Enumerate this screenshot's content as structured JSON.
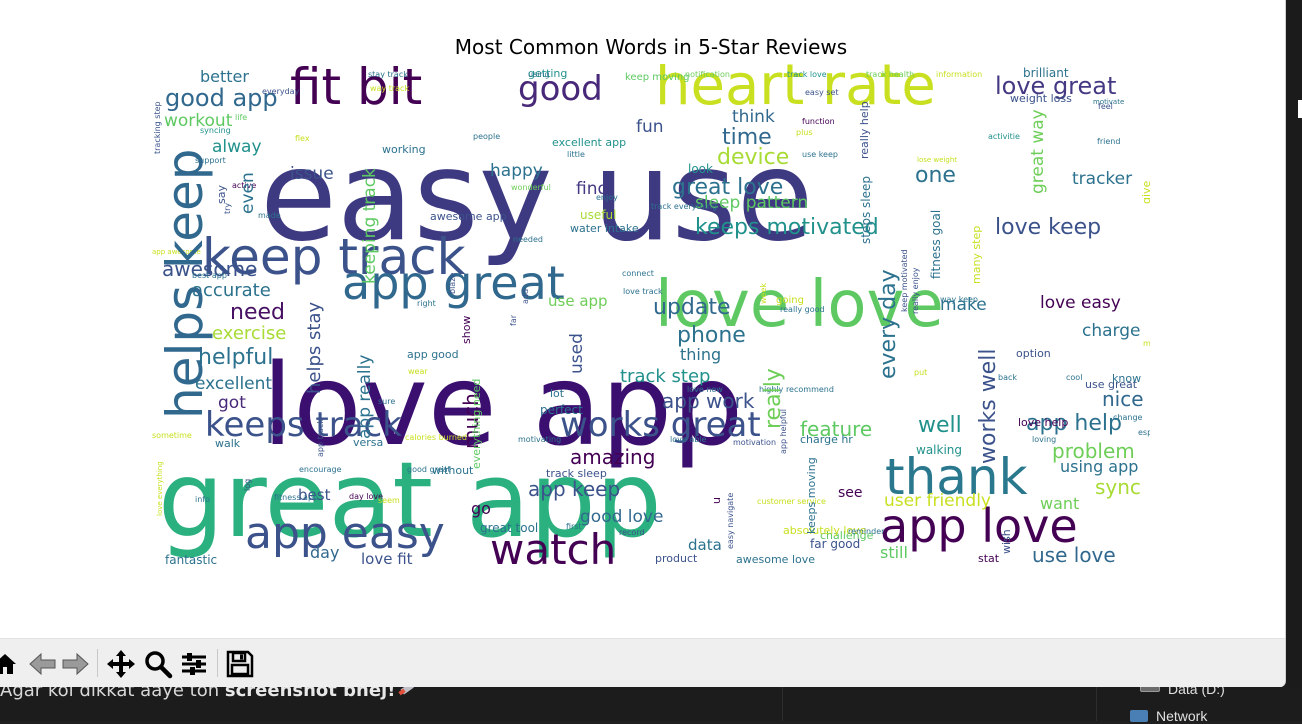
{
  "figure": {
    "title": "Most Common Words in 5-Star Reviews",
    "word_colors": [
      "#440154",
      "#482878",
      "#3e4989",
      "#31688e",
      "#26828e",
      "#1f9e89",
      "#35b779",
      "#6ece58",
      "#b5de2b",
      "#fde725"
    ],
    "words": [
      {
        "text": "easy use",
        "size": 125,
        "color": "#3e3a81"
      },
      {
        "text": "love app",
        "size": 112,
        "color": "#3b0f6f"
      },
      {
        "text": "great app",
        "size": 104,
        "color": "#2bb07f"
      },
      {
        "text": "love love",
        "size": 64,
        "color": "#5ec962"
      },
      {
        "text": "heart rate",
        "size": 56,
        "color": "#c8e020"
      },
      {
        "text": "keep track",
        "size": 50,
        "color": "#3b528b"
      },
      {
        "text": "fit bit",
        "size": 50,
        "color": "#440154"
      },
      {
        "text": "helps keep",
        "size": 50,
        "color": "#31688e"
      },
      {
        "text": "app great",
        "size": 46,
        "color": "#31688e"
      },
      {
        "text": "thank",
        "size": 50,
        "color": "#2a788e"
      },
      {
        "text": "app love",
        "size": 46,
        "color": "#440154"
      },
      {
        "text": "app easy",
        "size": 44,
        "color": "#3b528b"
      },
      {
        "text": "watch",
        "size": 42,
        "color": "#440154"
      },
      {
        "text": "keeps track",
        "size": 34,
        "color": "#3b528b"
      },
      {
        "text": "works great",
        "size": 34,
        "color": "#3b528b"
      },
      {
        "text": "good",
        "size": 34,
        "color": "#482878"
      },
      {
        "text": "love great",
        "size": 24,
        "color": "#443983"
      },
      {
        "text": "good app",
        "size": 24,
        "color": "#31688e"
      },
      {
        "text": "keeps motivated",
        "size": 22,
        "color": "#21918c"
      },
      {
        "text": "great love",
        "size": 22,
        "color": "#2c728e"
      },
      {
        "text": "love keep",
        "size": 22,
        "color": "#3b528b"
      },
      {
        "text": "device",
        "size": 22,
        "color": "#a8db34"
      },
      {
        "text": "time",
        "size": 22,
        "color": "#31688e"
      },
      {
        "text": "update",
        "size": 22,
        "color": "#31688e"
      },
      {
        "text": "phone",
        "size": 22,
        "color": "#2c728e"
      },
      {
        "text": "need",
        "size": 22,
        "color": "#471063"
      },
      {
        "text": "helpful",
        "size": 22,
        "color": "#2c728e"
      },
      {
        "text": "awesome",
        "size": 20,
        "color": "#3b528b"
      },
      {
        "text": "accurate",
        "size": 18,
        "color": "#2c728e"
      },
      {
        "text": "exercise",
        "size": 18,
        "color": "#a8db34"
      },
      {
        "text": "excellent",
        "size": 17,
        "color": "#2c728e"
      },
      {
        "text": "got",
        "size": 17,
        "color": "#482878"
      },
      {
        "text": "amazing",
        "size": 20,
        "color": "#440154"
      },
      {
        "text": "app keep",
        "size": 20,
        "color": "#3b528b"
      },
      {
        "text": "good love",
        "size": 17,
        "color": "#31688e"
      },
      {
        "text": "app work",
        "size": 20,
        "color": "#3b528b"
      },
      {
        "text": "track step",
        "size": 18,
        "color": "#21918c"
      },
      {
        "text": "feature",
        "size": 20,
        "color": "#5ec962"
      },
      {
        "text": "well",
        "size": 22,
        "color": "#21918c"
      },
      {
        "text": "app help",
        "size": 22,
        "color": "#2c728e"
      },
      {
        "text": "problem",
        "size": 20,
        "color": "#6ece58"
      },
      {
        "text": "sync",
        "size": 20,
        "color": "#a8db34"
      },
      {
        "text": "nice",
        "size": 20,
        "color": "#31688e"
      },
      {
        "text": "charge",
        "size": 17,
        "color": "#2c728e"
      },
      {
        "text": "love easy",
        "size": 17,
        "color": "#440154"
      },
      {
        "text": "make",
        "size": 17,
        "color": "#2c728e"
      },
      {
        "text": "one",
        "size": 22,
        "color": "#2c728e"
      },
      {
        "text": "tracker",
        "size": 17,
        "color": "#2c728e"
      },
      {
        "text": "think",
        "size": 17,
        "color": "#31688e"
      },
      {
        "text": "fun",
        "size": 17,
        "color": "#3b528b"
      },
      {
        "text": "find",
        "size": 17,
        "color": "#443983"
      },
      {
        "text": "happy",
        "size": 17,
        "color": "#2c728e"
      },
      {
        "text": "issue",
        "size": 17,
        "color": "#3b528b"
      },
      {
        "text": "workout",
        "size": 17,
        "color": "#5ec962"
      },
      {
        "text": "alway",
        "size": 17,
        "color": "#21918c"
      },
      {
        "text": "better",
        "size": 16,
        "color": "#2c728e"
      },
      {
        "text": "sleep pattern",
        "size": 17,
        "color": "#5ec962"
      },
      {
        "text": "user friendly",
        "size": 17,
        "color": "#c8e020"
      },
      {
        "text": "using app",
        "size": 16,
        "color": "#2c728e"
      },
      {
        "text": "use love",
        "size": 20,
        "color": "#31688e"
      },
      {
        "text": "love fit",
        "size": 15,
        "color": "#3b528b"
      },
      {
        "text": "day",
        "size": 16,
        "color": "#31688e"
      },
      {
        "text": "go",
        "size": 16,
        "color": "#440154"
      },
      {
        "text": "best",
        "size": 15,
        "color": "#3b528b"
      },
      {
        "text": "data",
        "size": 15,
        "color": "#2c728e"
      },
      {
        "text": "still",
        "size": 16,
        "color": "#5ec962"
      },
      {
        "text": "want",
        "size": 16,
        "color": "#6ece58"
      },
      {
        "text": "use app",
        "size": 15,
        "color": "#6ece58"
      },
      {
        "text": "thing",
        "size": 16,
        "color": "#2c728e"
      },
      {
        "text": "fantastic",
        "size": 12,
        "color": "#2c728e"
      },
      {
        "text": "brilliant",
        "size": 12,
        "color": "#2c728e"
      },
      {
        "text": "weight loss",
        "size": 11,
        "color": "#3b528b"
      },
      {
        "text": "perfect",
        "size": 12,
        "color": "#2c728e"
      },
      {
        "text": "look",
        "size": 12,
        "color": "#21918c"
      },
      {
        "text": "walking",
        "size": 12,
        "color": "#21918c"
      },
      {
        "text": "great tool",
        "size": 12,
        "color": "#2c728e"
      },
      {
        "text": "far good",
        "size": 12,
        "color": "#3b528b"
      },
      {
        "text": "awesome app",
        "size": 11,
        "color": "#3b528b"
      },
      {
        "text": "awesome love",
        "size": 11,
        "color": "#2c728e"
      },
      {
        "text": "challenge",
        "size": 11,
        "color": "#5ec962"
      },
      {
        "text": "product",
        "size": 11,
        "color": "#3b528b"
      },
      {
        "text": "stat",
        "size": 11,
        "color": "#440154"
      },
      {
        "text": "versa",
        "size": 11,
        "color": "#2c728e"
      },
      {
        "text": "walk",
        "size": 11,
        "color": "#2c728e"
      },
      {
        "text": "working",
        "size": 11,
        "color": "#2c728e"
      },
      {
        "text": "useful",
        "size": 12,
        "color": "#a8db34"
      },
      {
        "text": "water intake",
        "size": 11,
        "color": "#2c728e"
      },
      {
        "text": "without",
        "size": 11,
        "color": "#2c728e"
      },
      {
        "text": "track sleep",
        "size": 11,
        "color": "#3b528b"
      },
      {
        "text": "charge hr",
        "size": 11,
        "color": "#2c728e"
      },
      {
        "text": "excellent app",
        "size": 11,
        "color": "#21918c"
      },
      {
        "text": "getting",
        "size": 11,
        "color": "#21918c"
      },
      {
        "text": "keep moving",
        "size": 10,
        "color": "#5ec962"
      },
      {
        "text": "going",
        "size": 10,
        "color": "#c8e020"
      },
      {
        "text": "lot",
        "size": 11,
        "color": "#2c728e"
      },
      {
        "text": "see",
        "size": 14,
        "color": "#440154"
      },
      {
        "text": "use great",
        "size": 11,
        "color": "#3b528b"
      },
      {
        "text": "support",
        "size": 8,
        "color": "#2c728e"
      },
      {
        "text": "life",
        "size": 8,
        "color": "#5ec962"
      },
      {
        "text": "everyday",
        "size": 8,
        "color": "#3b528b"
      },
      {
        "text": "way track",
        "size": 8,
        "color": "#c8e020"
      },
      {
        "text": "stay track",
        "size": 8,
        "color": "#2c728e"
      },
      {
        "text": "using",
        "size": 8,
        "color": "#2c728e"
      },
      {
        "text": "notification",
        "size": 8,
        "color": "#6ece58"
      },
      {
        "text": "track love",
        "size": 8,
        "color": "#21918c"
      },
      {
        "text": "easy set",
        "size": 8,
        "color": "#3b528b"
      },
      {
        "text": "track health",
        "size": 8,
        "color": "#6ece58"
      },
      {
        "text": "information",
        "size": 8,
        "color": "#c8e020"
      },
      {
        "text": "motivate",
        "size": 7,
        "color": "#2c728e"
      },
      {
        "text": "function",
        "size": 8,
        "color": "#440154"
      },
      {
        "text": "plus",
        "size": 8,
        "color": "#c8e020"
      },
      {
        "text": "feel",
        "size": 8,
        "color": "#3b528b"
      },
      {
        "text": "friend",
        "size": 8,
        "color": "#2c728e"
      },
      {
        "text": "lose weight",
        "size": 7,
        "color": "#c8e020"
      },
      {
        "text": "activitie",
        "size": 8,
        "color": "#21918c"
      },
      {
        "text": "syncing",
        "size": 8,
        "color": "#21918c"
      },
      {
        "text": "flex",
        "size": 8,
        "color": "#c8e020"
      },
      {
        "text": "people",
        "size": 8,
        "color": "#2c728e"
      },
      {
        "text": "little",
        "size": 8,
        "color": "#2c728e"
      },
      {
        "text": "use keep",
        "size": 8,
        "color": "#2c728e"
      },
      {
        "text": "active",
        "size": 8,
        "color": "#440154"
      },
      {
        "text": "wonderful",
        "size": 8,
        "color": "#6ece58"
      },
      {
        "text": "enjoy",
        "size": 8,
        "color": "#2c728e"
      },
      {
        "text": "track everything",
        "size": 8,
        "color": "#2c728e"
      },
      {
        "text": "made",
        "size": 8,
        "color": "#2c728e"
      },
      {
        "text": "needed",
        "size": 8,
        "color": "#2c728e"
      },
      {
        "text": "app awesome",
        "size": 7,
        "color": "#c8e020"
      },
      {
        "text": "best app",
        "size": 8,
        "color": "#2c728e"
      },
      {
        "text": "connect",
        "size": 8,
        "color": "#2c728e"
      },
      {
        "text": "love track",
        "size": 8,
        "color": "#2c728e"
      },
      {
        "text": "right",
        "size": 8,
        "color": "#2c728e"
      },
      {
        "text": "really good",
        "size": 8,
        "color": "#2c728e"
      },
      {
        "text": "way keep",
        "size": 8,
        "color": "#2c728e"
      },
      {
        "text": "option",
        "size": 11,
        "color": "#3b528b"
      },
      {
        "text": "month",
        "size": 8,
        "color": "#c8e020"
      },
      {
        "text": "cool",
        "size": 8,
        "color": "#2c728e"
      },
      {
        "text": "put",
        "size": 8,
        "color": "#c8e020"
      },
      {
        "text": "know",
        "size": 11,
        "color": "#2c728e"
      },
      {
        "text": "back",
        "size": 8,
        "color": "#2c728e"
      },
      {
        "text": "track fitness",
        "size": 8,
        "color": "#2c728e"
      },
      {
        "text": "love help",
        "size": 11,
        "color": "#440154"
      },
      {
        "text": "change",
        "size": 8,
        "color": "#2c728e"
      },
      {
        "text": "loving",
        "size": 8,
        "color": "#2c728e"
      },
      {
        "text": "especially",
        "size": 8,
        "color": "#2c728e"
      },
      {
        "text": "app good",
        "size": 11,
        "color": "#2c728e"
      },
      {
        "text": "wear",
        "size": 8,
        "color": "#c8e020"
      },
      {
        "text": "love new",
        "size": 8,
        "color": "#2c728e"
      },
      {
        "text": "highly recommend",
        "size": 8,
        "color": "#2c728e"
      },
      {
        "text": "sure",
        "size": 8,
        "color": "#2c728e"
      },
      {
        "text": "calories burned",
        "size": 8,
        "color": "#c8e020"
      },
      {
        "text": "motivating",
        "size": 8,
        "color": "#2c728e"
      },
      {
        "text": "love able",
        "size": 8,
        "color": "#2c728e"
      },
      {
        "text": "motivation",
        "size": 8,
        "color": "#3b528b"
      },
      {
        "text": "encourage",
        "size": 8,
        "color": "#2c728e"
      },
      {
        "text": "good great",
        "size": 8,
        "color": "#2c728e"
      },
      {
        "text": "sometime",
        "size": 8,
        "color": "#c8e020"
      },
      {
        "text": "fitness app",
        "size": 8,
        "color": "#2c728e"
      },
      {
        "text": "day love",
        "size": 8,
        "color": "#440154"
      },
      {
        "text": "seem",
        "size": 8,
        "color": "#c8e020"
      },
      {
        "text": "info",
        "size": 8,
        "color": "#2c728e"
      },
      {
        "text": "first",
        "size": 8,
        "color": "#2c728e"
      },
      {
        "text": "record",
        "size": 8,
        "color": "#3b528b"
      },
      {
        "text": "customer service",
        "size": 8,
        "color": "#c8e020"
      },
      {
        "text": "absolutely love",
        "size": 11,
        "color": "#c8e020"
      },
      {
        "text": "reminder",
        "size": 8,
        "color": "#2c728e"
      }
    ],
    "vertical_words": [
      {
        "text": "helps keep",
        "size": 50,
        "color": "#31688e"
      },
      {
        "text": "helps stay",
        "size": 18,
        "color": "#3b528b"
      },
      {
        "text": "keeping track",
        "size": 17,
        "color": "#5ec962"
      },
      {
        "text": "app really",
        "size": 17,
        "color": "#2c728e"
      },
      {
        "text": "much",
        "size": 20,
        "color": "#440154"
      },
      {
        "text": "really",
        "size": 22,
        "color": "#6ece58"
      },
      {
        "text": "every day",
        "size": 22,
        "color": "#2c728e"
      },
      {
        "text": "works well",
        "size": 22,
        "color": "#3b528b"
      },
      {
        "text": "great way",
        "size": 17,
        "color": "#6ece58"
      },
      {
        "text": "used",
        "size": 17,
        "color": "#3b528b"
      },
      {
        "text": "even",
        "size": 17,
        "color": "#2c728e"
      },
      {
        "text": "steps sleep",
        "size": 12,
        "color": "#2c728e"
      },
      {
        "text": "fitness goal",
        "size": 12,
        "color": "#2c728e"
      },
      {
        "text": "everything need",
        "size": 11,
        "color": "#5ec962"
      },
      {
        "text": "keeps moving",
        "size": 11,
        "color": "#2c728e"
      },
      {
        "text": "wish",
        "size": 11,
        "color": "#3b528b"
      },
      {
        "text": "many step",
        "size": 11,
        "color": "#c8e020"
      },
      {
        "text": "say",
        "size": 11,
        "color": "#3b528b"
      },
      {
        "text": "give",
        "size": 11,
        "color": "#c8e020"
      },
      {
        "text": "show",
        "size": 11,
        "color": "#440154"
      },
      {
        "text": "tracking step",
        "size": 8,
        "color": "#3b528b"
      },
      {
        "text": "try",
        "size": 8,
        "color": "#3b528b"
      },
      {
        "text": "blaze",
        "size": 8,
        "color": "#3b528b"
      },
      {
        "text": "add",
        "size": 8,
        "color": "#3b528b"
      },
      {
        "text": "far",
        "size": 8,
        "color": "#3b528b"
      },
      {
        "text": "week",
        "size": 8,
        "color": "#c8e020"
      },
      {
        "text": "app helpful",
        "size": 8,
        "color": "#3b528b"
      },
      {
        "text": "app track",
        "size": 8,
        "color": "#3b528b"
      },
      {
        "text": "log",
        "size": 8,
        "color": "#3b528b"
      },
      {
        "text": "love everything",
        "size": 7,
        "color": "#c8e020"
      },
      {
        "text": "easy navigate",
        "size": 8,
        "color": "#3b528b"
      },
      {
        "text": "really help",
        "size": 11,
        "color": "#3b528b"
      },
      {
        "text": "keep motivated",
        "size": 8,
        "color": "#3b528b"
      },
      {
        "text": "really enjoy",
        "size": 8,
        "color": "#3b528b"
      },
      {
        "text": "u",
        "size": 11,
        "color": "#440154"
      }
    ]
  },
  "toolbar": {
    "buttons": [
      {
        "name": "home",
        "icon": "home-icon"
      },
      {
        "name": "back",
        "icon": "arrow-left-icon"
      },
      {
        "name": "forward",
        "icon": "arrow-right-icon"
      },
      {
        "name": "pan",
        "icon": "move-icon"
      },
      {
        "name": "zoom",
        "icon": "zoom-icon"
      },
      {
        "name": "configure",
        "icon": "sliders-icon"
      },
      {
        "name": "save",
        "icon": "save-icon"
      }
    ]
  },
  "background": {
    "chat_text_plain": "Agar koi dikkat aaye toh ",
    "chat_text_bold": "screenshot bhej!",
    "drive_label": "Data (D:)",
    "network_label": "Network"
  }
}
